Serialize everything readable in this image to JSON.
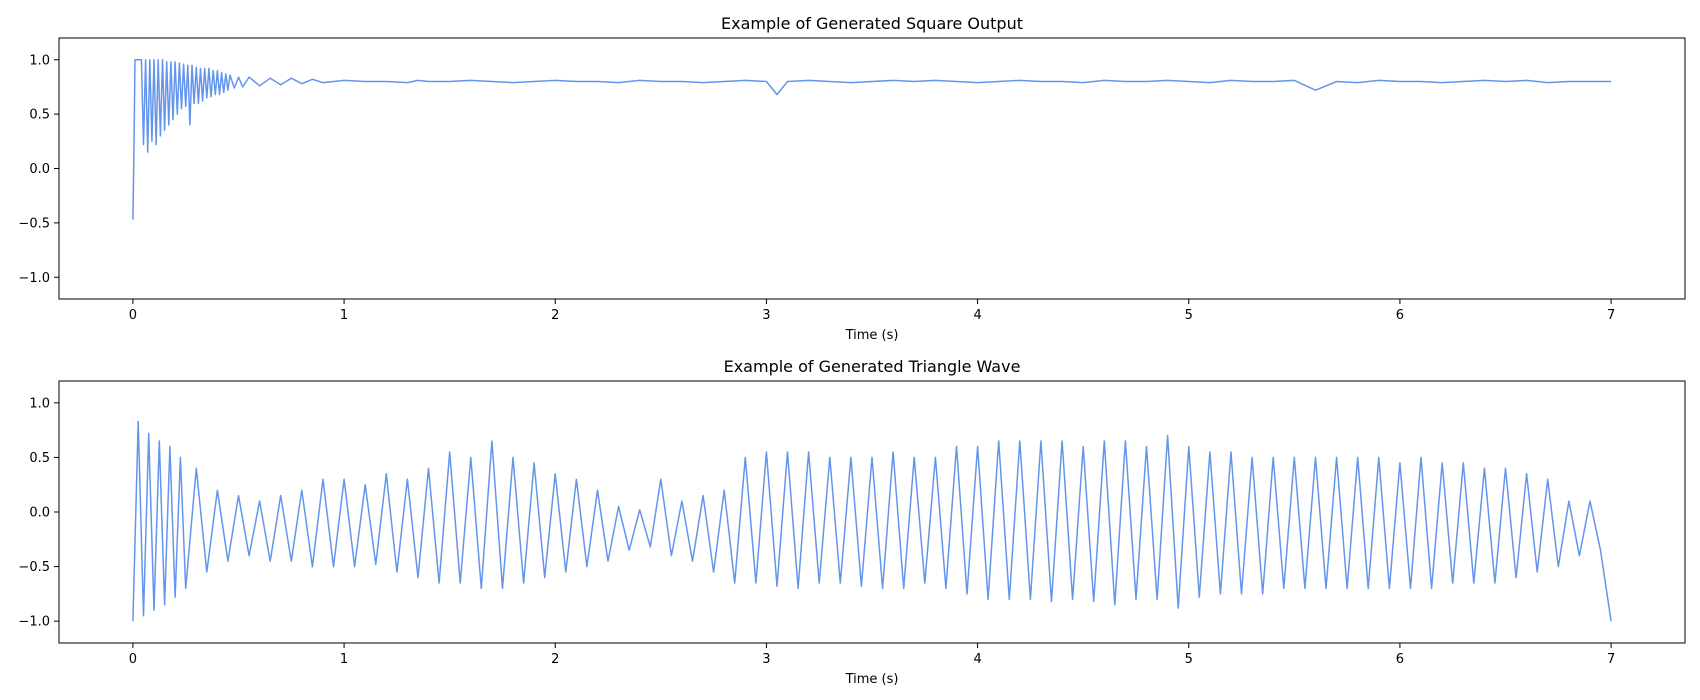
{
  "figure": {
    "background": "#ffffff",
    "line_color": "#6495ed"
  },
  "chart_data": [
    {
      "type": "line",
      "title": "Example of Generated Square Output",
      "xlabel": "Time (s)",
      "ylabel": "",
      "xlim": [
        -0.35,
        7.35
      ],
      "ylim": [
        -1.2,
        1.2
      ],
      "xticks": [
        0,
        1,
        2,
        3,
        4,
        5,
        6,
        7
      ],
      "yticks": [
        -1.0,
        -0.5,
        0.0,
        0.5,
        1.0
      ],
      "xtick_labels": [
        "0",
        "1",
        "2",
        "3",
        "4",
        "5",
        "6",
        "7"
      ],
      "ytick_labels": [
        "−1.0",
        "−0.5",
        "0.0",
        "0.5",
        "1.0"
      ],
      "grid": false,
      "series": [
        {
          "color": "#6495ed",
          "x": [
            0.0,
            0.005,
            0.01,
            0.02,
            0.03,
            0.04,
            0.05,
            0.06,
            0.07,
            0.08,
            0.09,
            0.1,
            0.11,
            0.12,
            0.13,
            0.14,
            0.15,
            0.16,
            0.17,
            0.18,
            0.19,
            0.2,
            0.21,
            0.22,
            0.23,
            0.24,
            0.25,
            0.26,
            0.27,
            0.28,
            0.29,
            0.3,
            0.31,
            0.32,
            0.33,
            0.34,
            0.35,
            0.36,
            0.37,
            0.38,
            0.39,
            0.4,
            0.41,
            0.42,
            0.43,
            0.44,
            0.45,
            0.46,
            0.48,
            0.5,
            0.52,
            0.55,
            0.6,
            0.65,
            0.7,
            0.75,
            0.8,
            0.85,
            0.9,
            1.0,
            1.1,
            1.2,
            1.3,
            1.35,
            1.4,
            1.5,
            1.6,
            1.7,
            1.8,
            1.9,
            2.0,
            2.1,
            2.2,
            2.3,
            2.4,
            2.5,
            2.6,
            2.7,
            2.8,
            2.9,
            3.0,
            3.05,
            3.1,
            3.2,
            3.3,
            3.4,
            3.5,
            3.6,
            3.7,
            3.8,
            3.9,
            4.0,
            4.1,
            4.2,
            4.3,
            4.4,
            4.5,
            4.6,
            4.7,
            4.8,
            4.9,
            5.0,
            5.1,
            5.2,
            5.3,
            5.4,
            5.5,
            5.6,
            5.7,
            5.8,
            5.9,
            6.0,
            6.1,
            6.2,
            6.3,
            6.4,
            6.5,
            6.6,
            6.7,
            6.8,
            6.9,
            7.0
          ],
          "y": [
            -0.47,
            0.2,
            1.0,
            1.0,
            1.0,
            1.0,
            0.22,
            1.0,
            0.15,
            1.0,
            0.25,
            1.0,
            0.22,
            1.0,
            0.3,
            1.0,
            0.35,
            0.98,
            0.4,
            0.98,
            0.45,
            0.98,
            0.5,
            0.97,
            0.55,
            0.96,
            0.57,
            0.95,
            0.4,
            0.95,
            0.6,
            0.93,
            0.6,
            0.92,
            0.62,
            0.92,
            0.65,
            0.92,
            0.66,
            0.9,
            0.68,
            0.9,
            0.68,
            0.88,
            0.7,
            0.87,
            0.72,
            0.86,
            0.74,
            0.84,
            0.75,
            0.84,
            0.76,
            0.83,
            0.77,
            0.83,
            0.78,
            0.82,
            0.79,
            0.81,
            0.8,
            0.8,
            0.79,
            0.81,
            0.8,
            0.8,
            0.81,
            0.8,
            0.79,
            0.8,
            0.81,
            0.8,
            0.8,
            0.79,
            0.81,
            0.8,
            0.8,
            0.79,
            0.8,
            0.81,
            0.8,
            0.68,
            0.8,
            0.81,
            0.8,
            0.79,
            0.8,
            0.81,
            0.8,
            0.81,
            0.8,
            0.79,
            0.8,
            0.81,
            0.8,
            0.8,
            0.79,
            0.81,
            0.8,
            0.8,
            0.81,
            0.8,
            0.79,
            0.81,
            0.8,
            0.8,
            0.81,
            0.72,
            0.8,
            0.79,
            0.81,
            0.8,
            0.8,
            0.79,
            0.8,
            0.81,
            0.8,
            0.81,
            0.79,
            0.8,
            0.8,
            0.8
          ]
        }
      ]
    },
    {
      "type": "line",
      "title": "Example of Generated Triangle Wave",
      "xlabel": "Time (s)",
      "ylabel": "",
      "xlim": [
        -0.35,
        7.35
      ],
      "ylim": [
        -1.2,
        1.2
      ],
      "xticks": [
        0,
        1,
        2,
        3,
        4,
        5,
        6,
        7
      ],
      "yticks": [
        -1.0,
        -0.5,
        0.0,
        0.5,
        1.0
      ],
      "xtick_labels": [
        "0",
        "1",
        "2",
        "3",
        "4",
        "5",
        "6",
        "7"
      ],
      "ytick_labels": [
        "−1.0",
        "−0.5",
        "0.0",
        "0.5",
        "1.0"
      ],
      "grid": false,
      "series": [
        {
          "color": "#6495ed",
          "x": [
            0.0,
            0.025,
            0.05,
            0.075,
            0.1,
            0.125,
            0.15,
            0.175,
            0.2,
            0.225,
            0.25,
            0.3,
            0.35,
            0.4,
            0.45,
            0.5,
            0.55,
            0.6,
            0.65,
            0.7,
            0.75,
            0.8,
            0.85,
            0.9,
            0.95,
            1.0,
            1.05,
            1.1,
            1.15,
            1.2,
            1.25,
            1.3,
            1.35,
            1.4,
            1.45,
            1.5,
            1.55,
            1.6,
            1.65,
            1.7,
            1.75,
            1.8,
            1.85,
            1.9,
            1.95,
            2.0,
            2.05,
            2.1,
            2.15,
            2.2,
            2.25,
            2.3,
            2.35,
            2.4,
            2.45,
            2.5,
            2.55,
            2.6,
            2.65,
            2.7,
            2.75,
            2.8,
            2.85,
            2.9,
            2.95,
            3.0,
            3.05,
            3.1,
            3.15,
            3.2,
            3.25,
            3.3,
            3.35,
            3.4,
            3.45,
            3.5,
            3.55,
            3.6,
            3.65,
            3.7,
            3.75,
            3.8,
            3.85,
            3.9,
            3.95,
            4.0,
            4.05,
            4.1,
            4.15,
            4.2,
            4.25,
            4.3,
            4.35,
            4.4,
            4.45,
            4.5,
            4.55,
            4.6,
            4.65,
            4.7,
            4.75,
            4.8,
            4.85,
            4.9,
            4.95,
            5.0,
            5.05,
            5.1,
            5.15,
            5.2,
            5.25,
            5.3,
            5.35,
            5.4,
            5.45,
            5.5,
            5.55,
            5.6,
            5.65,
            5.7,
            5.75,
            5.8,
            5.85,
            5.9,
            5.95,
            6.0,
            6.05,
            6.1,
            6.15,
            6.2,
            6.25,
            6.3,
            6.35,
            6.4,
            6.45,
            6.5,
            6.55,
            6.6,
            6.65,
            6.7,
            6.75,
            6.8,
            6.85,
            6.9,
            6.95,
            7.0
          ],
          "y": [
            -1.0,
            0.83,
            -0.95,
            0.72,
            -0.9,
            0.65,
            -0.85,
            0.6,
            -0.78,
            0.5,
            -0.7,
            0.4,
            -0.55,
            0.2,
            -0.45,
            0.15,
            -0.4,
            0.1,
            -0.45,
            0.15,
            -0.45,
            0.2,
            -0.5,
            0.3,
            -0.5,
            0.3,
            -0.5,
            0.25,
            -0.48,
            0.35,
            -0.55,
            0.3,
            -0.6,
            0.4,
            -0.65,
            0.55,
            -0.65,
            0.5,
            -0.7,
            0.65,
            -0.7,
            0.5,
            -0.65,
            0.45,
            -0.6,
            0.35,
            -0.55,
            0.3,
            -0.5,
            0.2,
            -0.45,
            0.05,
            -0.35,
            0.02,
            -0.32,
            0.3,
            -0.4,
            0.1,
            -0.45,
            0.15,
            -0.55,
            0.2,
            -0.65,
            0.5,
            -0.65,
            0.55,
            -0.68,
            0.55,
            -0.7,
            0.55,
            -0.65,
            0.5,
            -0.65,
            0.5,
            -0.68,
            0.5,
            -0.7,
            0.55,
            -0.7,
            0.5,
            -0.65,
            0.5,
            -0.7,
            0.6,
            -0.75,
            0.6,
            -0.8,
            0.65,
            -0.8,
            0.65,
            -0.8,
            0.65,
            -0.82,
            0.65,
            -0.8,
            0.6,
            -0.82,
            0.65,
            -0.85,
            0.65,
            -0.8,
            0.6,
            -0.8,
            0.7,
            -0.88,
            0.6,
            -0.78,
            0.55,
            -0.75,
            0.55,
            -0.75,
            0.5,
            -0.75,
            0.5,
            -0.7,
            0.5,
            -0.7,
            0.5,
            -0.7,
            0.5,
            -0.7,
            0.5,
            -0.7,
            0.5,
            -0.7,
            0.45,
            -0.7,
            0.5,
            -0.7,
            0.45,
            -0.65,
            0.45,
            -0.65,
            0.4,
            -0.65,
            0.4,
            -0.6,
            0.35,
            -0.55,
            0.3,
            -0.5,
            0.1,
            -0.4,
            0.1,
            -0.35,
            -1.0
          ]
        }
      ]
    }
  ]
}
